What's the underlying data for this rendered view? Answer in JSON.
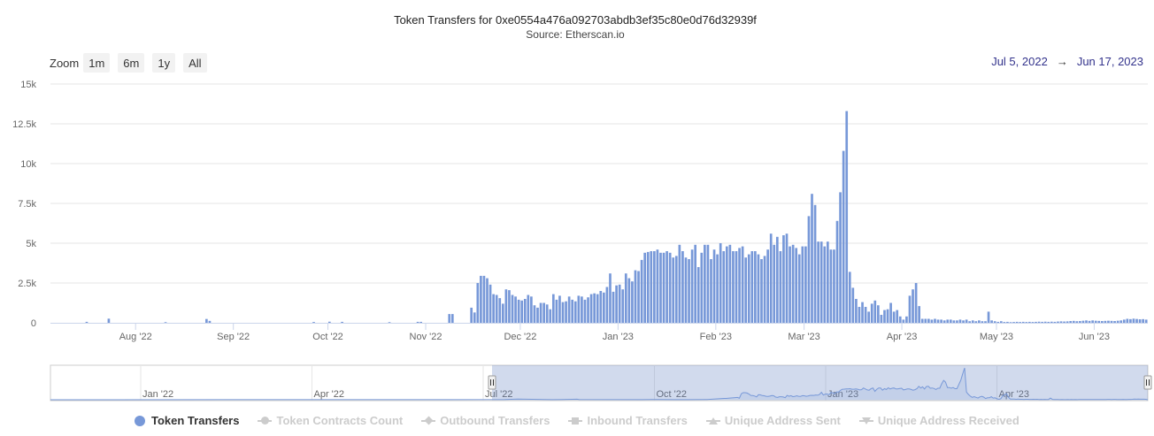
{
  "chart_data": {
    "type": "bar",
    "title": "Token Transfers for 0xe0554a476a092703abdb3ef35c80e0d76d32939f",
    "subtitle": "Source: Etherscan.io",
    "xlabel": "",
    "ylabel": "",
    "ylim": [
      0,
      15000
    ],
    "yticks": [
      "0",
      "2.5k",
      "5k",
      "7.5k",
      "10k",
      "12.5k",
      "15k"
    ],
    "grid": true,
    "legend_position": "bottom",
    "start_date": "2022-07-05",
    "end_date": "2023-06-17",
    "xticks": [
      {
        "date": "2022-08-01",
        "label": "Aug '22"
      },
      {
        "date": "2022-09-01",
        "label": "Sep '22"
      },
      {
        "date": "2022-10-01",
        "label": "Oct '22"
      },
      {
        "date": "2022-11-01",
        "label": "Nov '22"
      },
      {
        "date": "2022-12-01",
        "label": "Dec '22"
      },
      {
        "date": "2023-01-01",
        "label": "Jan '23"
      },
      {
        "date": "2023-02-01",
        "label": "Feb '23"
      },
      {
        "date": "2023-03-01",
        "label": "Mar '23"
      },
      {
        "date": "2023-04-01",
        "label": "Apr '23"
      },
      {
        "date": "2023-05-01",
        "label": "May '23"
      },
      {
        "date": "2023-06-01",
        "label": "Jun '23"
      }
    ],
    "series": [
      {
        "name": "Token Transfers",
        "color": "#7798d8",
        "points": [
          [
            "2022-07-16",
            60
          ],
          [
            "2022-07-23",
            260
          ],
          [
            "2022-08-10",
            40
          ],
          [
            "2022-08-23",
            240
          ],
          [
            "2022-08-24",
            120
          ],
          [
            "2022-09-26",
            50
          ],
          [
            "2022-10-01",
            70
          ],
          [
            "2022-10-05",
            60
          ],
          [
            "2022-10-20",
            40
          ],
          [
            "2022-10-29",
            60
          ],
          [
            "2022-10-30",
            60
          ],
          [
            "2022-11-08",
            550
          ],
          [
            "2022-11-09",
            550
          ],
          [
            "2022-11-15",
            950
          ],
          [
            "2022-11-16",
            650
          ],
          [
            "2022-11-17",
            2500
          ],
          [
            "2022-11-18",
            2950
          ],
          [
            "2022-11-19",
            2950
          ],
          [
            "2022-11-20",
            2800
          ],
          [
            "2022-11-21",
            2400
          ],
          [
            "2022-11-22",
            1800
          ],
          [
            "2022-11-23",
            1750
          ],
          [
            "2022-11-24",
            1550
          ],
          [
            "2022-11-25",
            1200
          ],
          [
            "2022-11-26",
            2100
          ],
          [
            "2022-11-27",
            2050
          ],
          [
            "2022-11-28",
            1750
          ],
          [
            "2022-11-29",
            1650
          ],
          [
            "2022-11-30",
            1450
          ],
          [
            "2022-12-01",
            1400
          ],
          [
            "2022-12-02",
            1500
          ],
          [
            "2022-12-03",
            1750
          ],
          [
            "2022-12-04",
            1650
          ],
          [
            "2022-12-05",
            1100
          ],
          [
            "2022-12-06",
            950
          ],
          [
            "2022-12-07",
            1250
          ],
          [
            "2022-12-08",
            1250
          ],
          [
            "2022-12-09",
            1150
          ],
          [
            "2022-12-10",
            850
          ],
          [
            "2022-12-11",
            1800
          ],
          [
            "2022-12-12",
            1450
          ],
          [
            "2022-12-13",
            1700
          ],
          [
            "2022-12-14",
            1300
          ],
          [
            "2022-12-15",
            1350
          ],
          [
            "2022-12-16",
            1650
          ],
          [
            "2022-12-17",
            1450
          ],
          [
            "2022-12-18",
            1350
          ],
          [
            "2022-12-19",
            1700
          ],
          [
            "2022-12-20",
            1650
          ],
          [
            "2022-12-21",
            1450
          ],
          [
            "2022-12-22",
            1600
          ],
          [
            "2022-12-23",
            1800
          ],
          [
            "2022-12-24",
            1850
          ],
          [
            "2022-12-25",
            1800
          ],
          [
            "2022-12-26",
            2000
          ],
          [
            "2022-12-27",
            1900
          ],
          [
            "2022-12-28",
            2250
          ],
          [
            "2022-12-29",
            3100
          ],
          [
            "2022-12-30",
            1950
          ],
          [
            "2022-12-31",
            2350
          ],
          [
            "2023-01-01",
            2400
          ],
          [
            "2023-01-02",
            2100
          ],
          [
            "2023-01-03",
            3100
          ],
          [
            "2023-01-04",
            2800
          ],
          [
            "2023-01-05",
            2600
          ],
          [
            "2023-01-06",
            3300
          ],
          [
            "2023-01-07",
            3250
          ],
          [
            "2023-01-08",
            3950
          ],
          [
            "2023-01-09",
            4400
          ],
          [
            "2023-01-10",
            4450
          ],
          [
            "2023-01-11",
            4500
          ],
          [
            "2023-01-12",
            4500
          ],
          [
            "2023-01-13",
            4600
          ],
          [
            "2023-01-14",
            4400
          ],
          [
            "2023-01-15",
            4400
          ],
          [
            "2023-01-16",
            4500
          ],
          [
            "2023-01-17",
            4400
          ],
          [
            "2023-01-18",
            4100
          ],
          [
            "2023-01-19",
            4200
          ],
          [
            "2023-01-20",
            4900
          ],
          [
            "2023-01-21",
            4500
          ],
          [
            "2023-01-22",
            4100
          ],
          [
            "2023-01-23",
            4000
          ],
          [
            "2023-01-24",
            4600
          ],
          [
            "2023-01-25",
            4900
          ],
          [
            "2023-01-26",
            3500
          ],
          [
            "2023-01-27",
            4400
          ],
          [
            "2023-01-28",
            4900
          ],
          [
            "2023-01-29",
            4900
          ],
          [
            "2023-01-30",
            4000
          ],
          [
            "2023-01-31",
            4600
          ],
          [
            "2023-02-01",
            4300
          ],
          [
            "2023-02-02",
            5000
          ],
          [
            "2023-02-03",
            4500
          ],
          [
            "2023-02-04",
            4800
          ],
          [
            "2023-02-05",
            4900
          ],
          [
            "2023-02-06",
            4500
          ],
          [
            "2023-02-07",
            4500
          ],
          [
            "2023-02-08",
            4700
          ],
          [
            "2023-02-09",
            4800
          ],
          [
            "2023-02-10",
            4100
          ],
          [
            "2023-02-11",
            4300
          ],
          [
            "2023-02-12",
            4500
          ],
          [
            "2023-02-13",
            4500
          ],
          [
            "2023-02-14",
            4300
          ],
          [
            "2023-02-15",
            4000
          ],
          [
            "2023-02-16",
            4200
          ],
          [
            "2023-02-17",
            4600
          ],
          [
            "2023-02-18",
            5600
          ],
          [
            "2023-02-19",
            4900
          ],
          [
            "2023-02-20",
            5400
          ],
          [
            "2023-02-21",
            4500
          ],
          [
            "2023-02-22",
            5500
          ],
          [
            "2023-02-23",
            5600
          ],
          [
            "2023-02-24",
            4800
          ],
          [
            "2023-02-25",
            4900
          ],
          [
            "2023-02-26",
            4700
          ],
          [
            "2023-02-27",
            4300
          ],
          [
            "2023-02-28",
            4800
          ],
          [
            "2023-03-01",
            4800
          ],
          [
            "2023-03-02",
            6700
          ],
          [
            "2023-03-03",
            8100
          ],
          [
            "2023-03-04",
            7400
          ],
          [
            "2023-03-05",
            5100
          ],
          [
            "2023-03-06",
            5100
          ],
          [
            "2023-03-07",
            4800
          ],
          [
            "2023-03-08",
            5100
          ],
          [
            "2023-03-09",
            4600
          ],
          [
            "2023-03-10",
            4600
          ],
          [
            "2023-03-11",
            6400
          ],
          [
            "2023-03-12",
            8200
          ],
          [
            "2023-03-13",
            10800
          ],
          [
            "2023-03-14",
            13300
          ],
          [
            "2023-03-15",
            3200
          ],
          [
            "2023-03-16",
            2200
          ],
          [
            "2023-03-17",
            1500
          ],
          [
            "2023-03-18",
            1000
          ],
          [
            "2023-03-19",
            1300
          ],
          [
            "2023-03-20",
            1000
          ],
          [
            "2023-03-21",
            700
          ],
          [
            "2023-03-22",
            1200
          ],
          [
            "2023-03-23",
            1400
          ],
          [
            "2023-03-24",
            1100
          ],
          [
            "2023-03-25",
            500
          ],
          [
            "2023-03-26",
            800
          ],
          [
            "2023-03-27",
            850
          ],
          [
            "2023-03-28",
            1250
          ],
          [
            "2023-03-29",
            700
          ],
          [
            "2023-03-30",
            800
          ],
          [
            "2023-03-31",
            400
          ],
          [
            "2023-04-01",
            200
          ],
          [
            "2023-04-02",
            400
          ],
          [
            "2023-04-03",
            1700
          ],
          [
            "2023-04-04",
            2100
          ],
          [
            "2023-04-05",
            2500
          ],
          [
            "2023-04-06",
            1050
          ],
          [
            "2023-04-07",
            250
          ],
          [
            "2023-04-08",
            250
          ],
          [
            "2023-04-09",
            250
          ],
          [
            "2023-04-10",
            200
          ],
          [
            "2023-04-11",
            250
          ],
          [
            "2023-04-12",
            200
          ],
          [
            "2023-04-13",
            200
          ],
          [
            "2023-04-14",
            150
          ],
          [
            "2023-04-15",
            200
          ],
          [
            "2023-04-16",
            200
          ],
          [
            "2023-04-17",
            150
          ],
          [
            "2023-04-18",
            150
          ],
          [
            "2023-04-19",
            200
          ],
          [
            "2023-04-20",
            150
          ],
          [
            "2023-04-21",
            200
          ],
          [
            "2023-04-22",
            100
          ],
          [
            "2023-04-23",
            150
          ],
          [
            "2023-04-24",
            100
          ],
          [
            "2023-04-25",
            150
          ],
          [
            "2023-04-26",
            100
          ],
          [
            "2023-04-27",
            100
          ],
          [
            "2023-04-28",
            700
          ],
          [
            "2023-04-29",
            150
          ],
          [
            "2023-04-30",
            100
          ],
          [
            "2023-05-01",
            60
          ],
          [
            "2023-05-02",
            100
          ],
          [
            "2023-05-03",
            50
          ],
          [
            "2023-05-04",
            60
          ],
          [
            "2023-05-05",
            40
          ],
          [
            "2023-05-06",
            50
          ],
          [
            "2023-05-07",
            60
          ],
          [
            "2023-05-08",
            50
          ],
          [
            "2023-05-09",
            60
          ],
          [
            "2023-05-10",
            50
          ],
          [
            "2023-05-11",
            60
          ],
          [
            "2023-05-12",
            50
          ],
          [
            "2023-05-13",
            60
          ],
          [
            "2023-05-14",
            70
          ],
          [
            "2023-05-15",
            60
          ],
          [
            "2023-05-16",
            70
          ],
          [
            "2023-05-17",
            60
          ],
          [
            "2023-05-18",
            70
          ],
          [
            "2023-05-19",
            60
          ],
          [
            "2023-05-20",
            80
          ],
          [
            "2023-05-21",
            90
          ],
          [
            "2023-05-22",
            80
          ],
          [
            "2023-05-23",
            90
          ],
          [
            "2023-05-24",
            110
          ],
          [
            "2023-05-25",
            120
          ],
          [
            "2023-05-26",
            100
          ],
          [
            "2023-05-27",
            110
          ],
          [
            "2023-05-28",
            130
          ],
          [
            "2023-05-29",
            150
          ],
          [
            "2023-05-30",
            120
          ],
          [
            "2023-05-31",
            150
          ],
          [
            "2023-06-01",
            130
          ],
          [
            "2023-06-02",
            120
          ],
          [
            "2023-06-03",
            110
          ],
          [
            "2023-06-04",
            120
          ],
          [
            "2023-06-05",
            130
          ],
          [
            "2023-06-06",
            120
          ],
          [
            "2023-06-07",
            110
          ],
          [
            "2023-06-08",
            130
          ],
          [
            "2023-06-09",
            150
          ],
          [
            "2023-06-10",
            200
          ],
          [
            "2023-06-11",
            250
          ],
          [
            "2023-06-12",
            230
          ],
          [
            "2023-06-13",
            260
          ],
          [
            "2023-06-14",
            240
          ],
          [
            "2023-06-15",
            220
          ],
          [
            "2023-06-16",
            230
          ],
          [
            "2023-06-17",
            200
          ]
        ]
      }
    ],
    "navigator": {
      "xticks": [
        "Jan '22",
        "Apr '22",
        "Jul '22",
        "Oct '22",
        "Jan '23",
        "Apr '23"
      ]
    }
  },
  "zoom": {
    "label": "Zoom",
    "buttons": [
      "1m",
      "6m",
      "1y",
      "All"
    ]
  },
  "range": {
    "from": "Jul 5, 2022",
    "arrow": "→",
    "to": "Jun 17, 2023"
  },
  "legend": [
    {
      "label": "Token Transfers",
      "symbol": "circle",
      "active": true
    },
    {
      "label": "Token Contracts Count",
      "symbol": "circle",
      "active": false
    },
    {
      "label": "Outbound Transfers",
      "symbol": "diamond",
      "active": false
    },
    {
      "label": "Inbound Transfers",
      "symbol": "square",
      "active": false
    },
    {
      "label": "Unique Address Sent",
      "symbol": "triangle",
      "active": false
    },
    {
      "label": "Unique Address Received",
      "symbol": "triangle-down",
      "active": false
    }
  ]
}
